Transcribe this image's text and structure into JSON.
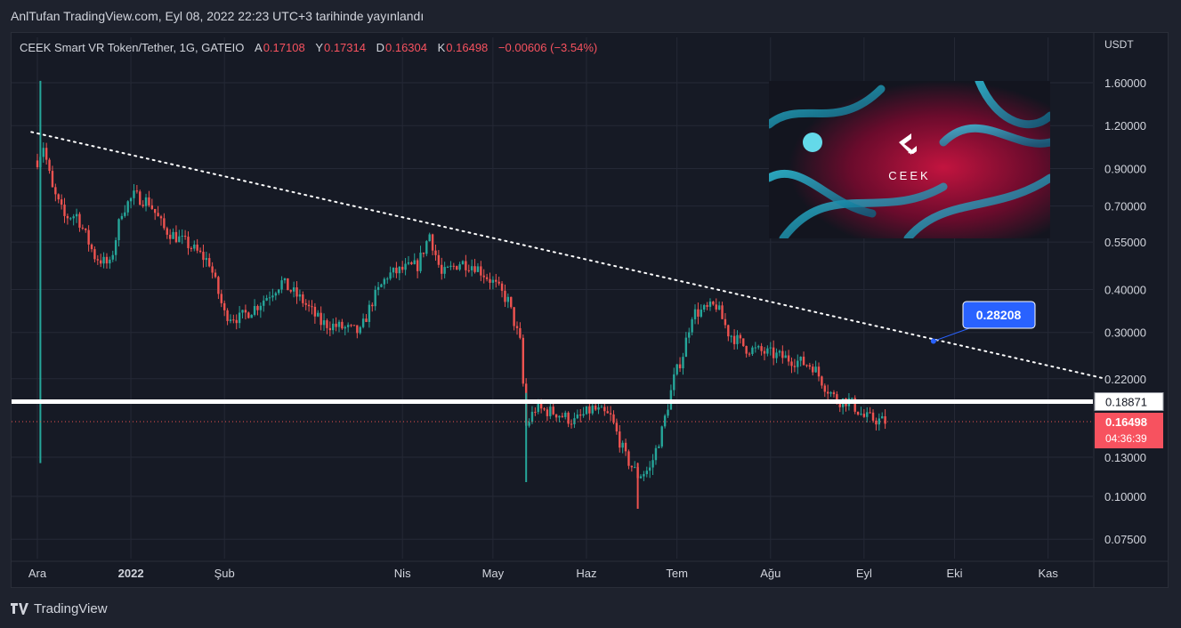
{
  "header": {
    "published": "AnlTufan TradingView.com, Eyl 08, 2022 22:23 UTC+3 tarihinde yayınlandı"
  },
  "symbol": {
    "title": "CEEK Smart VR Token/Tether, 1G, GATEIO",
    "open_label": "A",
    "open": "0.17108",
    "high_label": "Y",
    "high": "0.17314",
    "low_label": "D",
    "low": "0.16304",
    "close_label": "K",
    "close": "0.16498",
    "change": "−0.00606 (−3.54%)"
  },
  "footer": {
    "brand": "TradingView"
  },
  "colors": {
    "background": "#161a25",
    "grid": "#252936",
    "up": "#26a69a",
    "down": "#ef5350",
    "text": "#d1d4dc",
    "annotation_blue": "#2962ff",
    "price_label": "#f7525f"
  },
  "chart_data": {
    "type": "candlestick",
    "scale": "log",
    "currency": "USDT",
    "y_ticks": [
      "1.60000",
      "1.20000",
      "0.90000",
      "0.70000",
      "0.55000",
      "0.40000",
      "0.30000",
      "0.22000",
      "0.13000",
      "0.10000",
      "0.07500"
    ],
    "x_ticks": [
      {
        "label": "Ara",
        "date": "2021-12-01"
      },
      {
        "label": "2022",
        "date": "2022-01-01",
        "bold": true
      },
      {
        "label": "Şub",
        "date": "2022-02-01"
      },
      {
        "label": "Nis",
        "date": "2022-04-01"
      },
      {
        "label": "May",
        "date": "2022-05-01"
      },
      {
        "label": "Haz",
        "date": "2022-06-01"
      },
      {
        "label": "Tem",
        "date": "2022-07-01"
      },
      {
        "label": "Ağu",
        "date": "2022-08-01"
      },
      {
        "label": "Eyl",
        "date": "2022-09-01"
      },
      {
        "label": "Eki",
        "date": "2022-10-01"
      },
      {
        "label": "Kas",
        "date": "2022-11-01"
      }
    ],
    "price_path": [
      {
        "date": "2021-12-01",
        "price": 0.95
      },
      {
        "date": "2021-12-03",
        "price": 1.05
      },
      {
        "date": "2021-12-06",
        "price": 0.78
      },
      {
        "date": "2021-12-10",
        "price": 0.65
      },
      {
        "date": "2021-12-14",
        "price": 0.66
      },
      {
        "date": "2021-12-20",
        "price": 0.5
      },
      {
        "date": "2021-12-25",
        "price": 0.47
      },
      {
        "date": "2021-12-29",
        "price": 0.68
      },
      {
        "date": "2022-01-02",
        "price": 0.75
      },
      {
        "date": "2022-01-07",
        "price": 0.72
      },
      {
        "date": "2022-01-12",
        "price": 0.6
      },
      {
        "date": "2022-01-20",
        "price": 0.54
      },
      {
        "date": "2022-01-27",
        "price": 0.48
      },
      {
        "date": "2022-02-01",
        "price": 0.34
      },
      {
        "date": "2022-02-06",
        "price": 0.33
      },
      {
        "date": "2022-02-12",
        "price": 0.36
      },
      {
        "date": "2022-02-20",
        "price": 0.42
      },
      {
        "date": "2022-02-27",
        "price": 0.37
      },
      {
        "date": "2022-03-05",
        "price": 0.32
      },
      {
        "date": "2022-03-12",
        "price": 0.31
      },
      {
        "date": "2022-03-18",
        "price": 0.3
      },
      {
        "date": "2022-03-22",
        "price": 0.37
      },
      {
        "date": "2022-03-27",
        "price": 0.44
      },
      {
        "date": "2022-04-02",
        "price": 0.46
      },
      {
        "date": "2022-04-06",
        "price": 0.47
      },
      {
        "date": "2022-04-10",
        "price": 0.58
      },
      {
        "date": "2022-04-14",
        "price": 0.44
      },
      {
        "date": "2022-04-20",
        "price": 0.48
      },
      {
        "date": "2022-04-25",
        "price": 0.47
      },
      {
        "date": "2022-05-01",
        "price": 0.42
      },
      {
        "date": "2022-05-06",
        "price": 0.37
      },
      {
        "date": "2022-05-10",
        "price": 0.28
      },
      {
        "date": "2022-05-12",
        "price": 0.16
      },
      {
        "date": "2022-05-15",
        "price": 0.18
      },
      {
        "date": "2022-05-22",
        "price": 0.175
      },
      {
        "date": "2022-05-28",
        "price": 0.165
      },
      {
        "date": "2022-06-03",
        "price": 0.18
      },
      {
        "date": "2022-06-09",
        "price": 0.17
      },
      {
        "date": "2022-06-14",
        "price": 0.13
      },
      {
        "date": "2022-06-18",
        "price": 0.115
      },
      {
        "date": "2022-06-22",
        "price": 0.12
      },
      {
        "date": "2022-06-26",
        "price": 0.155
      },
      {
        "date": "2022-06-30",
        "price": 0.22
      },
      {
        "date": "2022-07-03",
        "price": 0.26
      },
      {
        "date": "2022-07-06",
        "price": 0.34
      },
      {
        "date": "2022-07-11",
        "price": 0.35
      },
      {
        "date": "2022-07-14",
        "price": 0.36
      },
      {
        "date": "2022-07-18",
        "price": 0.3
      },
      {
        "date": "2022-07-24",
        "price": 0.27
      },
      {
        "date": "2022-08-01",
        "price": 0.26
      },
      {
        "date": "2022-08-08",
        "price": 0.25
      },
      {
        "date": "2022-08-15",
        "price": 0.24
      },
      {
        "date": "2022-08-19",
        "price": 0.21
      },
      {
        "date": "2022-08-23",
        "price": 0.19
      },
      {
        "date": "2022-08-27",
        "price": 0.19
      },
      {
        "date": "2022-09-01",
        "price": 0.17
      },
      {
        "date": "2022-09-08",
        "price": 0.165
      }
    ],
    "extremes": [
      {
        "date": "2021-12-02",
        "high": 1.62,
        "low": 0.125
      },
      {
        "date": "2022-06-18",
        "high": 0.125,
        "low": 0.092
      },
      {
        "date": "2022-05-12",
        "high": 0.2,
        "low": 0.11
      }
    ],
    "trendline": {
      "start": {
        "date": "2021-11-29",
        "price": 1.15
      },
      "end": {
        "date": "2022-11-20",
        "price": 0.22
      },
      "style": "dotted"
    },
    "annotation_callout": {
      "value": "0.28208",
      "date": "2022-09-24",
      "price": 0.283
    },
    "horizontal_line": {
      "price": 0.18871,
      "label": "0.18871"
    },
    "last_price": {
      "price": 0.16498,
      "label": "0.16498",
      "countdown": "04:36:39"
    },
    "image_logo_text": "CEEK"
  }
}
